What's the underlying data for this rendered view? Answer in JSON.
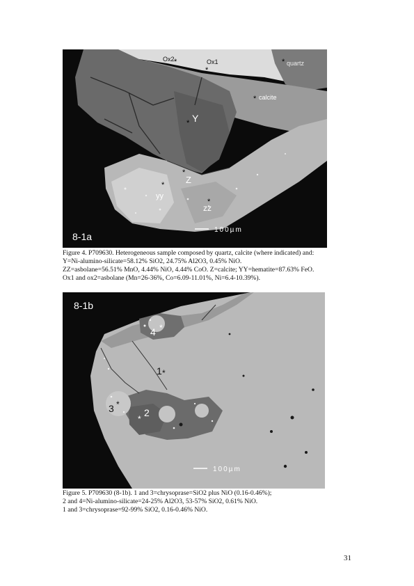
{
  "figure4": {
    "panel_label": "8-1a",
    "scale_bar": "100µm",
    "labels": {
      "ox2": "Ox2",
      "ox1": "Ox1",
      "quartz": "quartz",
      "calcite": "calcite",
      "y": "Y",
      "z": "Z",
      "yy": "yy",
      "zz": "zz"
    },
    "caption": [
      "Figure 4. P709630. Heterogeneous sample composed by quartz, calcite (where indicated) and:",
      "Y=Ni-alumino-silicate=58.12% SiO2, 24.75% Al2O3, 0.45% NiO.",
      "ZZ=asbolane=56.51% MnO, 4.44% NiO, 4.44% CoO. Z=calcite; YY=hematite=87.63% FeO.",
      "Ox1 and ox2=asbolane (Mn=26-36%, Co=6.09-11.01%, Ni=6.4-10.39%)."
    ]
  },
  "figure5": {
    "panel_label": "8-1b",
    "scale_bar": "100µm",
    "labels": {
      "p1": "1",
      "p2": "2",
      "p3": "3",
      "p4": "4"
    },
    "caption": [
      "Figure 5. P709630 (8-1b). 1 and 3=chrysoprase=SiO2 plus NiO (0.16-0.46%);",
      "2 and 4=Ni-alumino-silicate=24-25% Al2O3, 53-57% SiO2, 0.61% NiO.",
      "1 and 3=chrysoprase=92-99% SiO2, 0.16-0.46% NiO."
    ]
  },
  "page_number": "31"
}
